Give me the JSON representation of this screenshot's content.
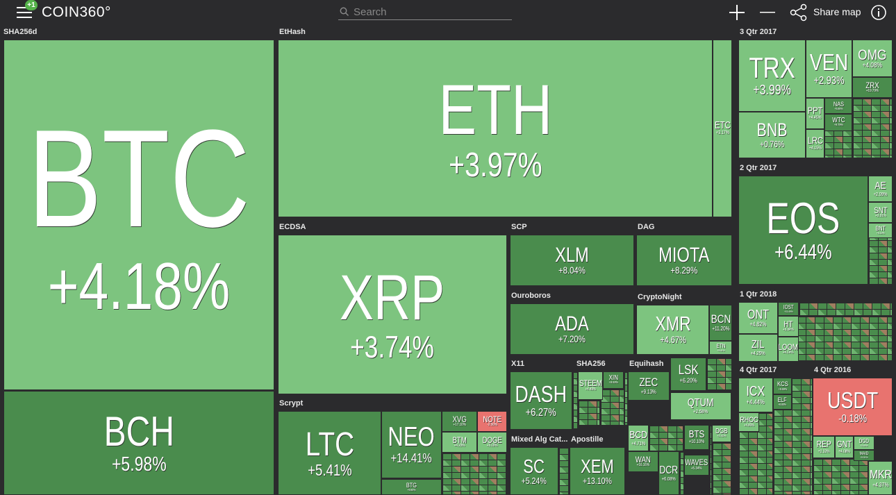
{
  "header": {
    "badge": "+1",
    "logo": "COIN360°",
    "search_placeholder": "Search",
    "share": "Share map"
  },
  "groups": [
    {
      "name": "SHA256d",
      "tiles": [
        {
          "symbol": "BTC",
          "change": "+4.18%"
        },
        {
          "symbol": "BCH",
          "change": "+5.98%"
        }
      ]
    },
    {
      "name": "EtHash",
      "tiles": [
        {
          "symbol": "ETH",
          "change": "+3.97%"
        },
        {
          "symbol": "ETC",
          "change": "+3.17%"
        }
      ]
    },
    {
      "name": "ECDSA",
      "tiles": [
        {
          "symbol": "XRP",
          "change": "+3.74%"
        }
      ]
    },
    {
      "name": "Scrypt",
      "tiles": [
        {
          "symbol": "LTC",
          "change": "+5.41%"
        },
        {
          "symbol": "NEO",
          "change": "+14.41%"
        },
        {
          "symbol": "BTG",
          "change": "+9.80%"
        },
        {
          "symbol": "XVG",
          "change": "+17.10%"
        },
        {
          "symbol": "NOTE",
          "change": "-2.00%"
        },
        {
          "symbol": "BTM",
          "change": "+4.23%"
        },
        {
          "symbol": "DOGE",
          "change": "+3.16%"
        }
      ]
    },
    {
      "name": "SCP",
      "tiles": [
        {
          "symbol": "XLM",
          "change": "+8.04%"
        }
      ]
    },
    {
      "name": "DAG",
      "tiles": [
        {
          "symbol": "MIOTA",
          "change": "+8.29%"
        }
      ]
    },
    {
      "name": "Ouroboros",
      "tiles": [
        {
          "symbol": "ADA",
          "change": "+7.20%"
        }
      ]
    },
    {
      "name": "CryptoNight",
      "tiles": [
        {
          "symbol": "XMR",
          "change": "+4.67%"
        },
        {
          "symbol": "BCN",
          "change": "+11.20%"
        },
        {
          "symbol": "ETN",
          "change": "+4.41%"
        }
      ]
    },
    {
      "name": "X11",
      "tiles": [
        {
          "symbol": "DASH",
          "change": "+6.27%"
        }
      ]
    },
    {
      "name": "SHA256",
      "tiles": [
        {
          "symbol": "STEEM",
          "change": "+4.48%"
        },
        {
          "symbol": "XIN",
          "change": "+8.53%"
        }
      ]
    },
    {
      "name": "Equihash",
      "tiles": [
        {
          "symbol": "ZEC",
          "change": "+9.13%"
        },
        {
          "symbol": "LSK",
          "change": "+6.20%"
        },
        {
          "symbol": "QTUM",
          "change": "+2.58%"
        },
        {
          "symbol": "BCD",
          "change": "+4.71%"
        },
        {
          "symbol": "BTS",
          "change": "+10.10%"
        },
        {
          "symbol": "WAN",
          "change": "+16.16%"
        },
        {
          "symbol": "DCR",
          "change": "+6.08%"
        },
        {
          "symbol": "WAVES",
          "change": "+5.34%"
        },
        {
          "symbol": "DGB",
          "change": "+3.41%"
        }
      ]
    },
    {
      "name": "Mixed Alg Cat...",
      "tiles": [
        {
          "symbol": "SC",
          "change": "+5.24%"
        }
      ]
    },
    {
      "name": "Apostille",
      "tiles": [
        {
          "symbol": "XEM",
          "change": "+13.10%"
        }
      ]
    },
    {
      "name": "3 Qtr 2017",
      "tiles": [
        {
          "symbol": "TRX",
          "change": "+3.99%"
        },
        {
          "symbol": "BNB",
          "change": "+0.76%"
        },
        {
          "symbol": "VEN",
          "change": "+2.93%"
        },
        {
          "symbol": "OMG",
          "change": "+4.08%"
        },
        {
          "symbol": "ZRX",
          "change": "+19.79%"
        },
        {
          "symbol": "PPT",
          "change": "+4.45%"
        },
        {
          "symbol": "NAS",
          "change": "+5.66%"
        },
        {
          "symbol": "WTC",
          "change": "+9.79%"
        },
        {
          "symbol": "LRC",
          "change": "+4.15%"
        }
      ]
    },
    {
      "name": "2 Qtr 2017",
      "tiles": [
        {
          "symbol": "EOS",
          "change": "+6.44%"
        },
        {
          "symbol": "AE",
          "change": "+2.09%"
        },
        {
          "symbol": "SNT",
          "change": "+3.31%"
        },
        {
          "symbol": "BNT",
          "change": "+3.13%"
        }
      ]
    },
    {
      "name": "1 Qtr 2018",
      "tiles": [
        {
          "symbol": "ONT",
          "change": "+4.82%"
        },
        {
          "symbol": "ZIL",
          "change": "+4.25%"
        },
        {
          "symbol": "IOST",
          "change": "+11.49%"
        },
        {
          "symbol": "HT",
          "change": "+3.34%"
        },
        {
          "symbol": "LOOM",
          "change": "+4.14%"
        }
      ]
    },
    {
      "name": "4 Qtr 2017",
      "tiles": [
        {
          "symbol": "ICX",
          "change": "+4.44%"
        },
        {
          "symbol": "KCS",
          "change": "+8.69%"
        },
        {
          "symbol": "ELF",
          "change": "+6.60%"
        },
        {
          "symbol": "RHOC",
          "change": "+4.80%"
        }
      ]
    },
    {
      "name": "4 Qtr 2016",
      "tiles": [
        {
          "symbol": "USDT",
          "change": "-0.18%"
        },
        {
          "symbol": "REP",
          "change": "+2.32%"
        },
        {
          "symbol": "GNT",
          "change": "+4.08%"
        },
        {
          "symbol": "DGD",
          "change": "+3.63%"
        },
        {
          "symbol": "MAID",
          "change": "+5.51%"
        },
        {
          "symbol": "MKR",
          "change": "+4.37%"
        }
      ]
    }
  ]
}
